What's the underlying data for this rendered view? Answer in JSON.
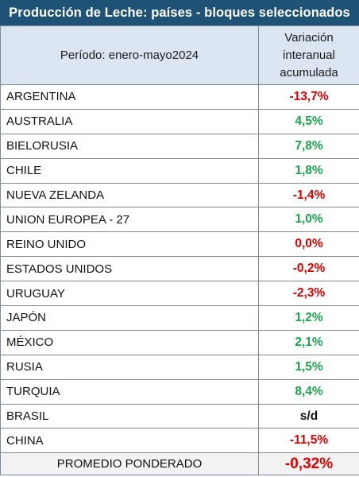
{
  "title": "Producción de Leche: países - bloques seleccionados",
  "header": {
    "period": "Período: enero-mayo2024",
    "variation_line1": "Variación",
    "variation_line2": "interanual",
    "variation_line3": "acumulada"
  },
  "rows": [
    {
      "country": "ARGENTINA",
      "value": "-13,7%",
      "sign": "neg"
    },
    {
      "country": "AUSTRALIA",
      "value": "4,5%",
      "sign": "pos"
    },
    {
      "country": "BIELORUSIA",
      "value": "7,8%",
      "sign": "pos"
    },
    {
      "country": "CHILE",
      "value": "1,8%",
      "sign": "pos"
    },
    {
      "country": "NUEVA ZELANDA",
      "value": "-1,4%",
      "sign": "neg"
    },
    {
      "country": "UNION EUROPEA - 27",
      "value": "1,0%",
      "sign": "pos"
    },
    {
      "country": "REINO UNIDO",
      "value": "0,0%",
      "sign": "neg"
    },
    {
      "country": "ESTADOS UNIDOS",
      "value": "-0,2%",
      "sign": "neg"
    },
    {
      "country": "URUGUAY",
      "value": "-2,3%",
      "sign": "neg"
    },
    {
      "country": "JAPÓN",
      "value": "1,2%",
      "sign": "pos"
    },
    {
      "country": "MÉXICO",
      "value": "2,1%",
      "sign": "pos"
    },
    {
      "country": "RUSIA",
      "value": "1,5%",
      "sign": "pos"
    },
    {
      "country": "TURQUIA",
      "value": "8,4%",
      "sign": "pos"
    },
    {
      "country": "BRASIL",
      "value": "s/d",
      "sign": "neu"
    },
    {
      "country": "CHINA",
      "value": "-11,5%",
      "sign": "neg"
    }
  ],
  "footer": {
    "label": "PROMEDIO PONDERADO",
    "value": "-0,32%"
  },
  "colors": {
    "title_bg": "#1f5376",
    "header_bg": "#dce6f2",
    "negative": "#e00000",
    "positive": "#1aa64b"
  }
}
